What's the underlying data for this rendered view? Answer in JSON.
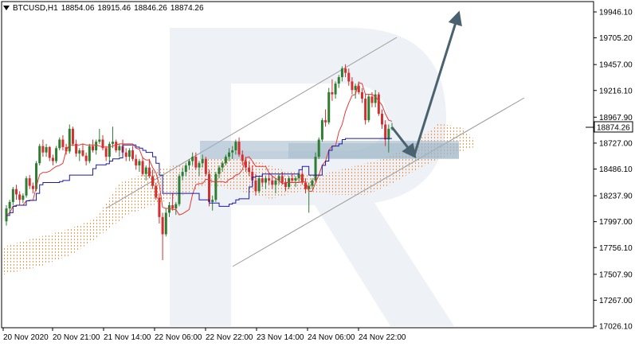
{
  "header": {
    "symbol": "BTCUSD,H1",
    "open": "18854.06",
    "high": "18915.46",
    "low": "18846.26",
    "close": "18874.26"
  },
  "colors": {
    "bull": "#2e7d32",
    "bear": "#d32f2f",
    "tenkan": "#e53935",
    "kijun": "#1a1aa8",
    "cloud": "#f08a3c",
    "channel": "#9a9a9a",
    "arrow": "#4a6270",
    "zone": "#9fb6c8",
    "watermark": "#e3e8ef"
  },
  "chart_data": {
    "type": "candlestick",
    "y_ticks": [
      "19946.10",
      "19705.20",
      "19457.00",
      "19216.10",
      "18967.90",
      "18727.00",
      "18486.10",
      "18237.90",
      "17997.00",
      "17756.10",
      "17507.90",
      "17267.00",
      "17026.10"
    ],
    "x_ticks": [
      "20 Nov 2020",
      "20 Nov 21:00",
      "21 Nov 14:00",
      "22 Nov 06:00",
      "22 Nov 22:00",
      "23 Nov 14:00",
      "24 Nov 06:00",
      "24 Nov 22:00"
    ],
    "current_price": "18874.26",
    "ylim": [
      17026.1,
      19946.1
    ],
    "candles": [
      [
        18000,
        18150,
        17960,
        18120
      ],
      [
        18120,
        18200,
        18080,
        18180
      ],
      [
        18180,
        18320,
        18150,
        18300
      ],
      [
        18300,
        18340,
        18200,
        18250
      ],
      [
        18250,
        18280,
        18150,
        18200
      ],
      [
        18200,
        18260,
        18170,
        18240
      ],
      [
        18240,
        18420,
        18220,
        18400
      ],
      [
        18400,
        18430,
        18300,
        18330
      ],
      [
        18330,
        18360,
        18260,
        18300
      ],
      [
        18300,
        18560,
        18280,
        18540
      ],
      [
        18540,
        18720,
        18520,
        18700
      ],
      [
        18700,
        18760,
        18600,
        18640
      ],
      [
        18640,
        18720,
        18600,
        18690
      ],
      [
        18690,
        18700,
        18560,
        18590
      ],
      [
        18590,
        18620,
        18520,
        18560
      ],
      [
        18560,
        18700,
        18540,
        18680
      ],
      [
        18680,
        18780,
        18660,
        18760
      ],
      [
        18760,
        18800,
        18660,
        18690
      ],
      [
        18690,
        18720,
        18620,
        18650
      ],
      [
        18650,
        18900,
        18630,
        18860
      ],
      [
        18860,
        18880,
        18700,
        18720
      ],
      [
        18720,
        18760,
        18600,
        18630
      ],
      [
        18630,
        18680,
        18560,
        18660
      ],
      [
        18660,
        18720,
        18600,
        18610
      ],
      [
        18610,
        18640,
        18520,
        18560
      ],
      [
        18560,
        18720,
        18540,
        18700
      ],
      [
        18700,
        18760,
        18640,
        18660
      ],
      [
        18660,
        18760,
        18620,
        18740
      ],
      [
        18740,
        18860,
        18720,
        18760
      ],
      [
        18760,
        18800,
        18660,
        18680
      ],
      [
        18680,
        18700,
        18560,
        18600
      ],
      [
        18600,
        18740,
        18560,
        18720
      ],
      [
        18720,
        18880,
        18680,
        18740
      ],
      [
        18740,
        18760,
        18640,
        18660
      ],
      [
        18660,
        18720,
        18600,
        18700
      ],
      [
        18700,
        18760,
        18620,
        18640
      ],
      [
        18640,
        18680,
        18560,
        18600
      ],
      [
        18600,
        18680,
        18560,
        18660
      ],
      [
        18660,
        18700,
        18560,
        18580
      ],
      [
        18580,
        18620,
        18480,
        18520
      ],
      [
        18520,
        18580,
        18460,
        18560
      ],
      [
        18560,
        18600,
        18420,
        18440
      ],
      [
        18440,
        18520,
        18380,
        18500
      ],
      [
        18500,
        18580,
        18400,
        18420
      ],
      [
        18420,
        18480,
        18300,
        18330
      ],
      [
        18330,
        18360,
        18200,
        18220
      ],
      [
        18220,
        18260,
        17980,
        18040
      ],
      [
        18040,
        18080,
        17640,
        17880
      ],
      [
        17880,
        18120,
        17860,
        18080
      ],
      [
        18080,
        18180,
        18040,
        18150
      ],
      [
        18150,
        18260,
        18100,
        18120
      ],
      [
        18120,
        18180,
        18060,
        18160
      ],
      [
        18160,
        18440,
        18140,
        18420
      ],
      [
        18420,
        18500,
        18380,
        18460
      ],
      [
        18460,
        18540,
        18420,
        18520
      ],
      [
        18520,
        18580,
        18480,
        18560
      ],
      [
        18560,
        18640,
        18520,
        18600
      ],
      [
        18600,
        18640,
        18480,
        18500
      ],
      [
        18500,
        18560,
        18420,
        18540
      ],
      [
        18540,
        18620,
        18500,
        18580
      ],
      [
        18580,
        18600,
        18420,
        18440
      ],
      [
        18440,
        18480,
        18140,
        18180
      ],
      [
        18180,
        18240,
        18100,
        18200
      ],
      [
        18200,
        18460,
        18180,
        18440
      ],
      [
        18440,
        18520,
        18400,
        18500
      ],
      [
        18500,
        18560,
        18460,
        18540
      ],
      [
        18540,
        18620,
        18520,
        18600
      ],
      [
        18600,
        18680,
        18560,
        18640
      ],
      [
        18640,
        18700,
        18580,
        18660
      ],
      [
        18660,
        18760,
        18620,
        18740
      ],
      [
        18740,
        18780,
        18600,
        18620
      ],
      [
        18620,
        18660,
        18520,
        18560
      ],
      [
        18560,
        18600,
        18460,
        18500
      ],
      [
        18500,
        18560,
        18420,
        18460
      ],
      [
        18460,
        18520,
        18340,
        18380
      ],
      [
        18380,
        18440,
        18240,
        18280
      ],
      [
        18280,
        18420,
        18260,
        18400
      ],
      [
        18400,
        18440,
        18320,
        18360
      ],
      [
        18360,
        18420,
        18300,
        18400
      ],
      [
        18400,
        18440,
        18340,
        18380
      ],
      [
        18380,
        18420,
        18300,
        18340
      ],
      [
        18340,
        18400,
        18260,
        18380
      ],
      [
        18380,
        18440,
        18340,
        18420
      ],
      [
        18420,
        18460,
        18340,
        18360
      ],
      [
        18360,
        18400,
        18280,
        18320
      ],
      [
        18320,
        18420,
        18300,
        18400
      ],
      [
        18400,
        18440,
        18360,
        18380
      ],
      [
        18380,
        18420,
        18320,
        18400
      ],
      [
        18400,
        18460,
        18360,
        18440
      ],
      [
        18440,
        18480,
        18340,
        18360
      ],
      [
        18360,
        18400,
        18260,
        18300
      ],
      [
        18300,
        18360,
        18080,
        18330
      ],
      [
        18330,
        18400,
        18300,
        18380
      ],
      [
        18380,
        18640,
        18360,
        18600
      ],
      [
        18600,
        18780,
        18580,
        18760
      ],
      [
        18760,
        18960,
        18740,
        18940
      ],
      [
        18940,
        19040,
        18880,
        18920
      ],
      [
        18920,
        19240,
        18900,
        19200
      ],
      [
        19200,
        19320,
        19120,
        19180
      ],
      [
        19180,
        19300,
        19140,
        19280
      ],
      [
        19280,
        19360,
        19240,
        19340
      ],
      [
        19340,
        19440,
        19300,
        19420
      ],
      [
        19420,
        19460,
        19340,
        19380
      ],
      [
        19380,
        19420,
        19260,
        19300
      ],
      [
        19300,
        19340,
        19180,
        19220
      ],
      [
        19220,
        19280,
        19140,
        19260
      ],
      [
        19260,
        19300,
        19180,
        19200
      ],
      [
        19200,
        19240,
        19100,
        19140
      ],
      [
        19140,
        19180,
        18900,
        18940
      ],
      [
        18940,
        19180,
        18920,
        19160
      ],
      [
        19160,
        19200,
        19060,
        19100
      ],
      [
        19100,
        19220,
        19060,
        19180
      ],
      [
        19180,
        19200,
        18980,
        19000
      ],
      [
        19000,
        19040,
        18860,
        18900
      ],
      [
        18900,
        18940,
        18700,
        18760
      ],
      [
        18760,
        18900,
        18640,
        18860
      ],
      [
        18860,
        18915,
        18846,
        18874
      ]
    ]
  }
}
